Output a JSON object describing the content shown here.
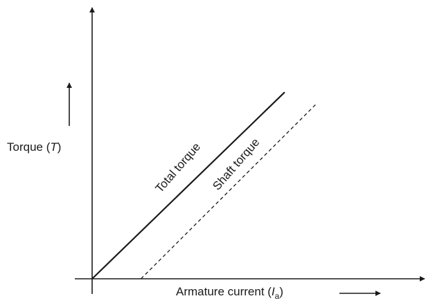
{
  "chart_data": {
    "type": "line",
    "xlabel": {
      "main": "Armature current (",
      "symbol": "I",
      "subscript": "a",
      "close": ")"
    },
    "ylabel": {
      "main": "Torque (",
      "symbol": "T",
      "close": ")"
    },
    "xlim": [
      0,
      100
    ],
    "ylim": [
      0,
      100
    ],
    "grid": false,
    "legend": "none",
    "series": [
      {
        "name": "Total torque",
        "style": "solid",
        "color": "#1a1a1a",
        "points": [
          [
            0,
            0
          ],
          [
            59,
            69
          ]
        ]
      },
      {
        "name": "Shaft torque",
        "style": "dashed",
        "color": "#1a1a1a",
        "points": [
          [
            15,
            0
          ],
          [
            69,
            65
          ]
        ]
      }
    ]
  }
}
